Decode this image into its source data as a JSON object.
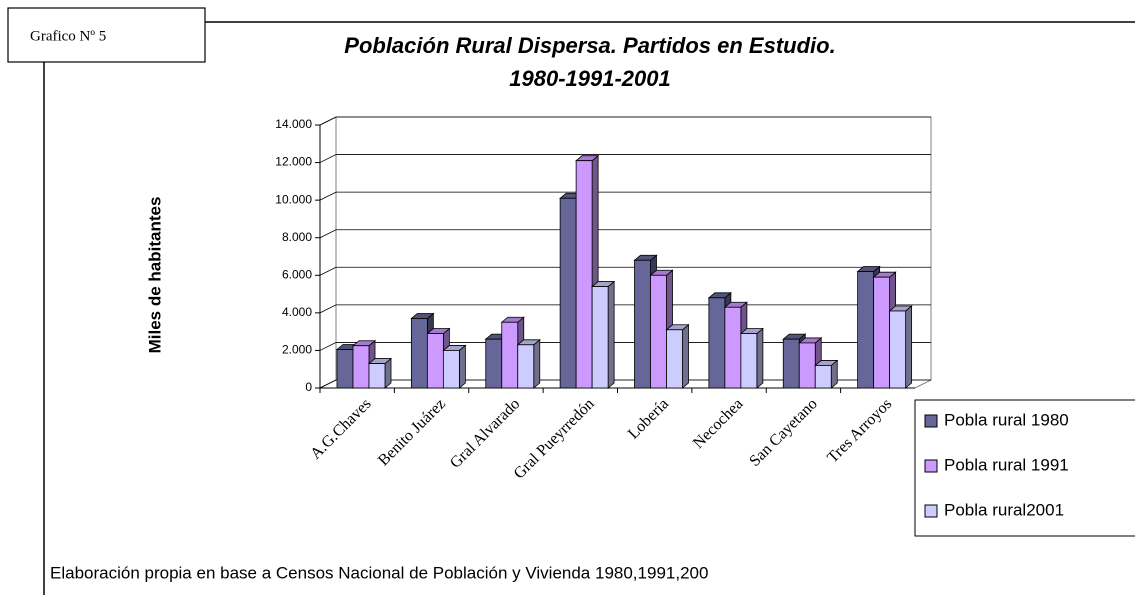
{
  "label": "Grafico Nº 5",
  "source": "Elaboración propia en base a Censos Nacional de Población y Vivienda 1980,1991,200",
  "chart_data": {
    "type": "bar3d",
    "title": [
      "Población Rural Dispersa. Partidos en Estudio.",
      "1980-1991-2001"
    ],
    "y_label": "Miles de habitantes",
    "categories": [
      "A.G.Chaves",
      "Benito Juárez",
      "Gral Alvarado",
      "Gral Pueyrredón",
      "Lobería",
      "Necochea",
      "San Cayetano",
      "Tres Arroyos"
    ],
    "series": [
      {
        "name": "Pobla rural 1980",
        "color": "#666699",
        "values": [
          2050,
          3700,
          2600,
          10100,
          6800,
          4800,
          2600,
          6200
        ]
      },
      {
        "name": "Pobla rural 1991",
        "color": "#cc99ff",
        "values": [
          2250,
          2900,
          3500,
          12100,
          6000,
          4300,
          2400,
          5900
        ]
      },
      {
        "name": "Pobla rural2001",
        "color": "#ccccff",
        "values": [
          1300,
          2000,
          2300,
          5400,
          3100,
          2900,
          1200,
          4100
        ]
      }
    ],
    "ylim": [
      0,
      14000
    ],
    "yticks": [
      0,
      {
        "value": 2000,
        "label": "2.000"
      },
      {
        "value": 4000,
        "label": "4.000"
      },
      {
        "value": 6000,
        "label": "6.000"
      },
      {
        "value": 8000,
        "label": "8.000"
      },
      {
        "value": 10000,
        "label": "10.000"
      },
      {
        "value": 12000,
        "label": "12.000"
      },
      {
        "value": 14000,
        "label": "14.000"
      }
    ],
    "grid": true
  }
}
